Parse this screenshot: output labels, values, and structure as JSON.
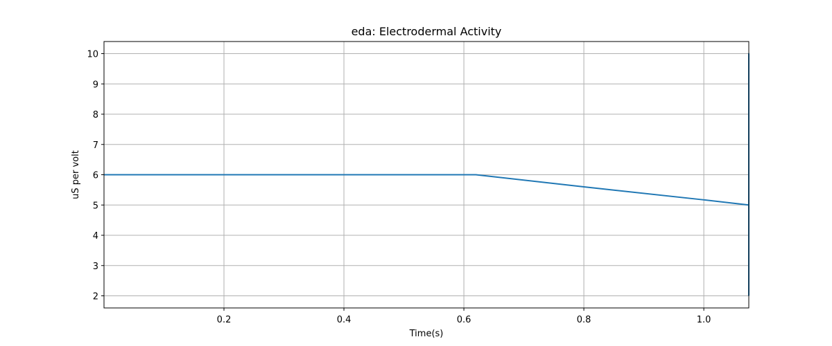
{
  "chart_data": {
    "type": "line",
    "title": "eda: Electrodermal Activity",
    "xlabel": "Time(s)",
    "ylabel": "uS per volt",
    "xlim": [
      0.0,
      1.075
    ],
    "ylim": [
      1.6,
      10.4
    ],
    "xticks": [
      0.2,
      0.4,
      0.6,
      0.8,
      1.0
    ],
    "xtick_labels": [
      "0.2",
      "0.4",
      "0.6",
      "0.8",
      "1.0"
    ],
    "yticks": [
      2,
      3,
      4,
      5,
      6,
      7,
      8,
      9,
      10
    ],
    "ytick_labels": [
      "2",
      "3",
      "4",
      "5",
      "6",
      "7",
      "8",
      "9",
      "10"
    ],
    "grid": true,
    "series": [
      {
        "color": "#1f77b4",
        "x": [
          0.0,
          0.62,
          0.8,
          1.0,
          1.075,
          1.075,
          1.075
        ],
        "y": [
          6,
          6,
          5.6,
          5.17,
          5,
          10,
          2
        ]
      }
    ]
  }
}
